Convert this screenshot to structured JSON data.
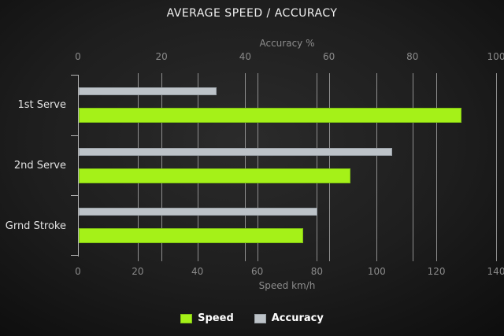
{
  "title": "AVERAGE SPEED / ACCURACY",
  "chart_data": {
    "type": "bar",
    "orientation": "horizontal",
    "categories": [
      "1st Serve",
      "2nd Serve",
      "Grnd Stroke"
    ],
    "series": [
      {
        "name": "Speed",
        "axis": "bottom",
        "values": [
          128,
          91,
          75
        ],
        "fill": "#a5f118",
        "border": "#7fc214"
      },
      {
        "name": "Accuracy",
        "axis": "top",
        "values": [
          33,
          75,
          57
        ],
        "fill": "#bdc3c8",
        "border": "#9aa1a7"
      }
    ],
    "top_axis": {
      "label": "Accuracy %",
      "min": 0,
      "max": 100,
      "ticks": [
        0,
        20,
        40,
        60,
        80,
        100
      ]
    },
    "bottom_axis": {
      "label": "Speed km/h",
      "min": 0,
      "max": 140,
      "ticks": [
        0,
        20,
        40,
        60,
        80,
        100,
        120,
        140
      ]
    },
    "legend": {
      "position": "bottom",
      "entries": [
        "Speed",
        "Accuracy"
      ]
    },
    "grid": true,
    "colors": {
      "background_center": "#2b2b2b",
      "background_edge": "#0c0c0c",
      "gridline": "#8f8f8f",
      "axis_line": "#b2b2b2",
      "title_text": "#f2f2f2",
      "tick_text": "#8a8a8a",
      "category_text": "#e2e2e2",
      "legend_text": "#ffffff"
    }
  }
}
